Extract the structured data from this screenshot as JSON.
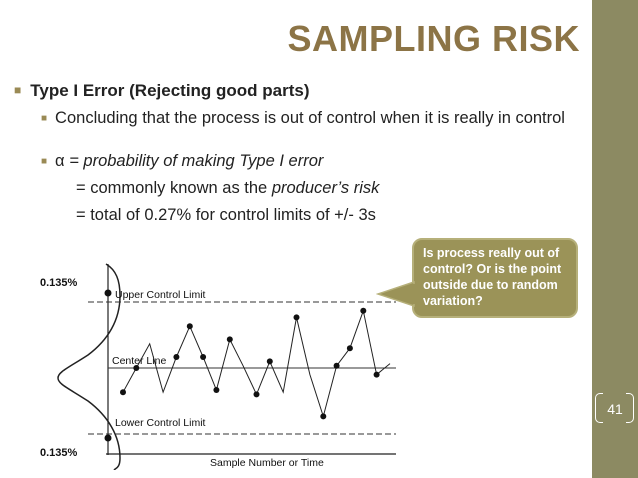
{
  "slide": {
    "title": "SAMPLING RISK",
    "page_number": "41"
  },
  "bullets": {
    "b1": "Type I Error (Rejecting good parts)",
    "b2": "Concluding that the process is out of control when it is really in control",
    "b3_alpha": "α",
    "b3_text": "= probability of making Type I error",
    "b4_pre": "= commonly known as the ",
    "b4_italic": "producer’s risk",
    "b5": "= total of 0.27% for control limits of +/- 3s"
  },
  "callout": {
    "text": "Is process really out of control? Or is the point outside due to random variation?"
  },
  "chart_data": {
    "type": "line",
    "labels": {
      "upper_pct": "0.135%",
      "lower_pct": "0.135%",
      "ucl": "Upper Control Limit",
      "center": "Center Line",
      "lcl": "Lower Control Limit",
      "xlabel": "Sample Number or Time"
    },
    "ylim": [
      -3,
      3
    ],
    "limits": {
      "ucl": 3,
      "center": 0,
      "lcl": -3
    },
    "sample_values": [
      -1.1,
      0,
      1.1,
      -1.1,
      0.5,
      1.9,
      0.5,
      -1.0,
      1.3,
      0.1,
      -1.2,
      0.3,
      -1.1,
      2.3,
      -0.3,
      -2.2,
      0.1,
      0.9,
      2.6,
      -0.3,
      0.2
    ],
    "points_marked": [
      true,
      true,
      false,
      false,
      true,
      true,
      true,
      true,
      true,
      false,
      true,
      true,
      false,
      true,
      false,
      true,
      true,
      true,
      true,
      true,
      false
    ]
  },
  "colors": {
    "sidebar": "#8c8a62",
    "title": "#8c7446",
    "callout_fill": "#9b9358",
    "bullet_marker": "#9a8a55"
  }
}
